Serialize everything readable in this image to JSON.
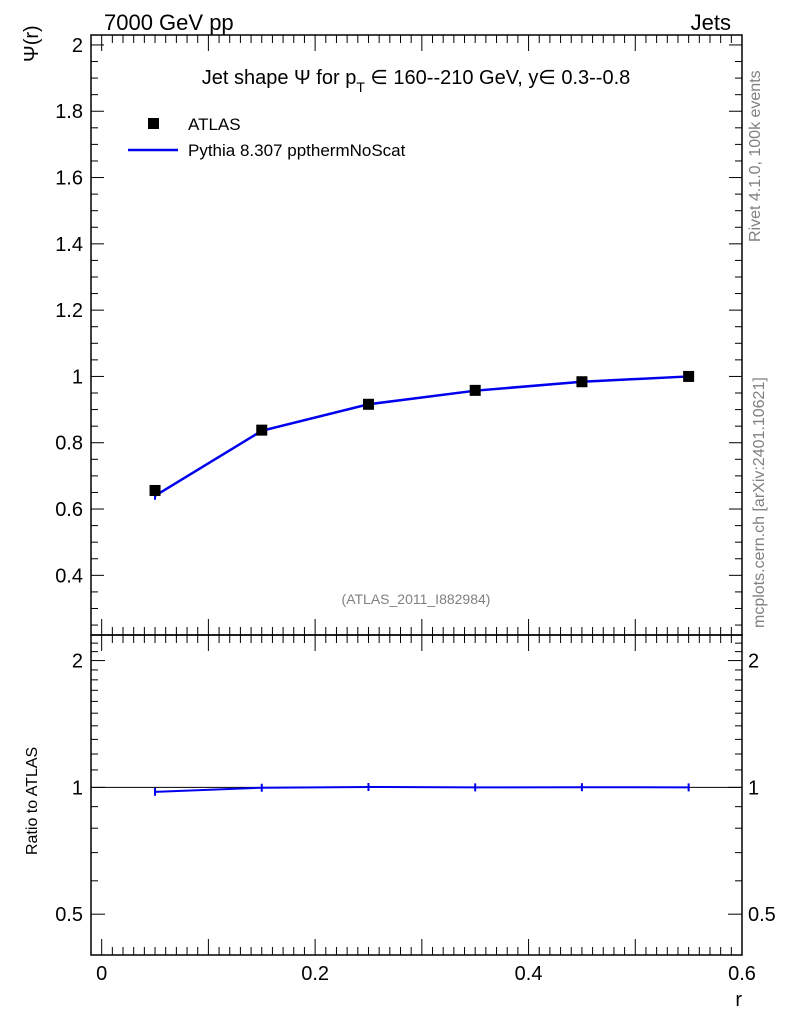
{
  "header": {
    "left": "7000 GeV pp",
    "right": "Jets"
  },
  "side_labels": {
    "rivet": "Rivet 4.1.0,  100k events",
    "mcplots": "mcplots.cern.ch [arXiv:2401.10621]"
  },
  "chart_data": {
    "type": "line",
    "title": "Jet shape Ψ for p_T ∈ 160--210 GeV, y∈ 0.3--0.8",
    "title_parts": {
      "prefix": "Jet shape Ψ for p",
      "sub": "T",
      "suffix": " ∈ 160--210 GeV, y∈ 0.3--0.8"
    },
    "watermark": "(ATLAS_2011_I882984)",
    "xlabel": "r",
    "ylabel": "Ψ(r)",
    "xlim": [
      -0.01,
      0.6
    ],
    "x_ticks": [
      0,
      0.2,
      0.4,
      0.6
    ],
    "x_tick_labels": [
      "0",
      "0.2",
      "0.4",
      "0.6"
    ],
    "main": {
      "ylim": [
        0.22,
        2.03
      ],
      "y_ticks": [
        0.4,
        0.6,
        0.8,
        1,
        1.2,
        1.4,
        1.6,
        1.8,
        2
      ],
      "y_tick_labels": [
        "0.4",
        "0.6",
        "0.8",
        "1",
        "1.2",
        "1.4",
        "1.6",
        "1.8",
        "2"
      ],
      "legend_position": "top-left",
      "series": [
        {
          "name": "ATLAS",
          "kind": "data-markers",
          "color": "#000000",
          "x": [
            0.05,
            0.15,
            0.25,
            0.35,
            0.45,
            0.55
          ],
          "values": [
            0.656,
            0.838,
            0.916,
            0.958,
            0.984,
            1.0
          ]
        },
        {
          "name": "Pythia 8.307 ppthermNoScat",
          "kind": "line",
          "color": "#0000ee",
          "x": [
            0.05,
            0.15,
            0.25,
            0.35,
            0.45,
            0.55
          ],
          "values": [
            0.64,
            0.836,
            0.916,
            0.957,
            0.984,
            1.0
          ]
        }
      ]
    },
    "ratio": {
      "ylabel": "Ratio to ATLAS",
      "ylim": [
        0.4,
        2.3
      ],
      "scale": "log",
      "y_ticks": [
        0.5,
        1,
        2
      ],
      "y_tick_labels": [
        "0.5",
        "1",
        "2"
      ],
      "reference": 1,
      "series": [
        {
          "name": "Pythia 8.307 ppthermNoScat",
          "color": "#0000ee",
          "x": [
            0.05,
            0.15,
            0.25,
            0.35,
            0.45,
            0.55
          ],
          "values": [
            0.976,
            0.998,
            1.002,
            1.0,
            1.001,
            1.0
          ]
        }
      ]
    }
  }
}
